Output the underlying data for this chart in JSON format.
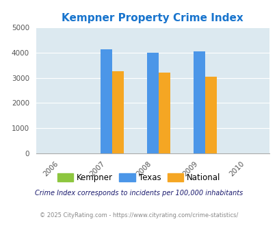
{
  "title": "Kempner Property Crime Index",
  "title_color": "#1874cd",
  "years": [
    2006,
    2007,
    2008,
    2009,
    2010
  ],
  "bar_years": [
    2007,
    2008,
    2009
  ],
  "kempner": [
    0,
    0,
    0
  ],
  "texas": [
    4120,
    4000,
    4050
  ],
  "national": [
    3250,
    3200,
    3050
  ],
  "texas_color": "#4b96e8",
  "national_color": "#f5a623",
  "kempner_color": "#8dc63f",
  "ylim": [
    0,
    5000
  ],
  "yticks": [
    0,
    1000,
    2000,
    3000,
    4000,
    5000
  ],
  "bg_color": "#dce9f0",
  "bar_width": 0.25,
  "xlim": [
    2005.5,
    2010.5
  ],
  "legend_labels": [
    "Kempner",
    "Texas",
    "National"
  ],
  "footnote1": "Crime Index corresponds to incidents per 100,000 inhabitants",
  "footnote2": "© 2025 CityRating.com - https://www.cityrating.com/crime-statistics/"
}
